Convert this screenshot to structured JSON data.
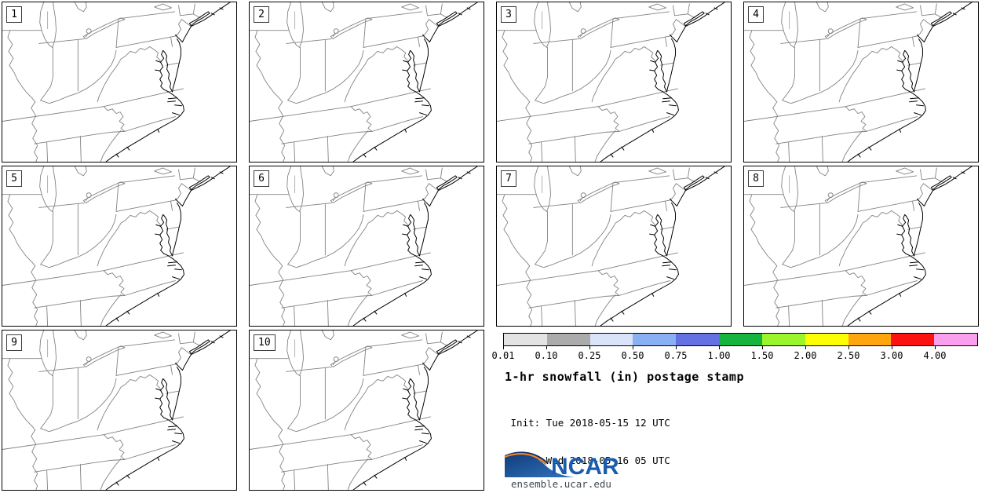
{
  "title": "1-hr snowfall (in) postage stamp",
  "init_line": " Init: Tue 2018-05-15 12 UTC",
  "valid_line": "Valid: Wed 2018-05-16 05 UTC",
  "panels": [
    {
      "label": "1"
    },
    {
      "label": "2"
    },
    {
      "label": "3"
    },
    {
      "label": "4"
    },
    {
      "label": "5"
    },
    {
      "label": "6"
    },
    {
      "label": "7"
    },
    {
      "label": "8"
    },
    {
      "label": "9"
    },
    {
      "label": "10"
    }
  ],
  "colorbar": {
    "tick_labels": [
      "0.01",
      "0.10",
      "0.25",
      "0.50",
      "0.75",
      "1.00",
      "1.50",
      "2.00",
      "2.50",
      "3.00",
      "4.00"
    ],
    "segment_colors": [
      "#e3e3e3",
      "#ababab",
      "#d9e4fa",
      "#8ab0f4",
      "#6471e2",
      "#15b43e",
      "#9cf42c",
      "#fdfd04",
      "#ffa60e",
      "#fb1310",
      "#f99fee"
    ]
  },
  "logo": {
    "org": "NCAR",
    "url": "ensemble.ucar.edu",
    "blue": "#1b5dad",
    "navy": "#0e2d5e",
    "orange": "#f0862c"
  }
}
